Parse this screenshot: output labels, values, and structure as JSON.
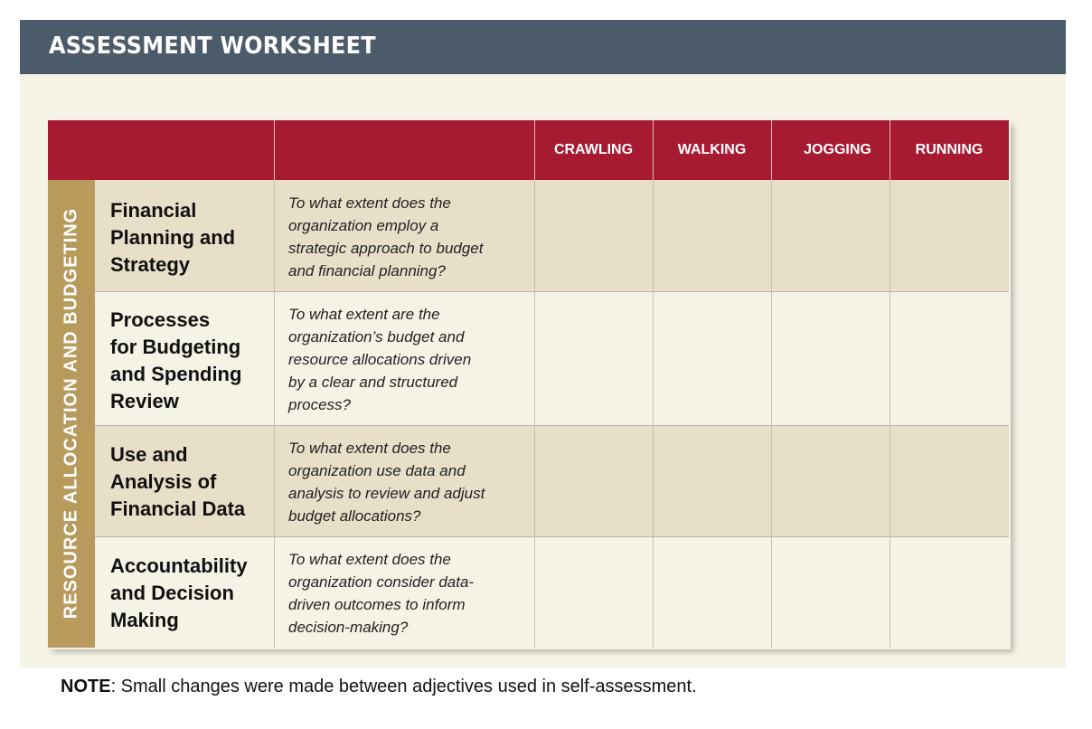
{
  "header": {
    "title": "ASSESSMENT WORKSHEET"
  },
  "table": {
    "category": "RESOURCE ALLOCATION AND BUDGETING",
    "columns": [
      "CRAWLING",
      "WALKING",
      "JOGGING",
      "RUNNING"
    ],
    "rows": [
      {
        "topic": [
          "Financial",
          "Planning and",
          "Strategy"
        ],
        "question": [
          "To what extent does the",
          "organization employ a",
          "strategic approach to budget",
          "and financial planning?"
        ]
      },
      {
        "topic": [
          "Processes",
          "for Budgeting",
          "and Spending",
          "Review"
        ],
        "question": [
          "To what extent are the",
          "organization’s budget and",
          "resource allocations driven",
          "by a clear and structured",
          "process?"
        ]
      },
      {
        "topic": [
          "Use and",
          "Analysis of",
          "Financial Data"
        ],
        "question": [
          "To what extent does the",
          "organization use data and",
          "analysis to review and adjust",
          "budget allocations?"
        ]
      },
      {
        "topic": [
          "Accountability",
          "and Decision",
          "Making"
        ],
        "question": [
          "To what extent does the",
          "organization consider data-",
          "driven outcomes to inform",
          "decision-making?"
        ]
      }
    ]
  },
  "note": {
    "label": "NOTE",
    "text": ": Small changes were made between adjectives used in self-assessment."
  },
  "colors": {
    "header_bar": "#4b5b6a",
    "column_header": "#a61b32",
    "category_band": "#b79a5c",
    "row_dark": "#e8dfc8",
    "row_light": "#f5f2e6",
    "panel": "#f5f2e6"
  }
}
